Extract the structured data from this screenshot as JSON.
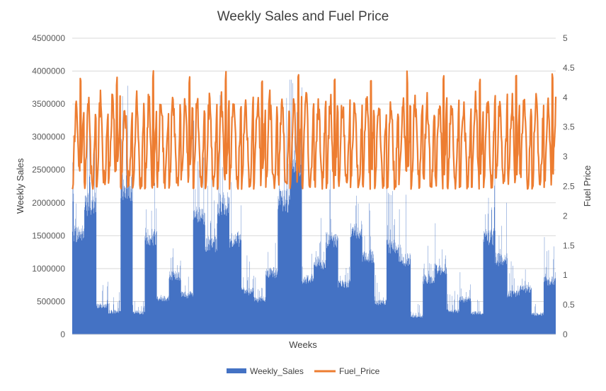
{
  "chart_data": {
    "type": "bar+line",
    "title": "Weekly Sales and Fuel Price",
    "xlabel": "Weeks",
    "ylabel": "Weekly Sales",
    "y2label": "Fuel Price",
    "ylim": [
      0,
      4500000
    ],
    "y2lim": [
      0,
      5
    ],
    "yticks": [
      "0",
      "500000",
      "1000000",
      "1500000",
      "2000000",
      "2500000",
      "3000000",
      "3500000",
      "4000000",
      "4500000"
    ],
    "y2ticks": [
      "0",
      "0.5",
      "1",
      "1.5",
      "2",
      "2.5",
      "3",
      "3.5",
      "4",
      "4.5",
      "5"
    ],
    "grid": true,
    "legend_position": "bottom",
    "series": [
      {
        "name": "Weekly_Sales",
        "type": "bar",
        "axis": "left",
        "color": "#4472C4",
        "store_levels": [
          1550000,
          2000000,
          440000,
          350000,
          2250000,
          340000,
          1500000,
          560000,
          900000,
          610000,
          1800000,
          1380000,
          2000000,
          1450000,
          660000,
          540000,
          950000,
          2050000,
          2650000,
          850000,
          1100000,
          1450000,
          780000,
          1600000,
          1200000,
          490000,
          1350000,
          1150000,
          280000,
          850000,
          1000000,
          360000,
          540000,
          330000,
          1500000,
          1150000,
          620000,
          700000,
          310000,
          820000
        ]
      },
      {
        "name": "Fuel_Price",
        "type": "line",
        "axis": "right",
        "color": "#ED7D31",
        "weeks_per_store": 143,
        "typical_range": [
          2.5,
          3.9
        ],
        "peak_value": 4.45
      }
    ]
  }
}
